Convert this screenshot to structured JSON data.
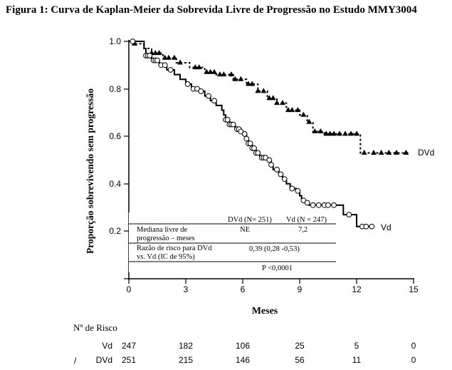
{
  "title": "Figura 1: Curva de Kaplan-Meier da Sobrevida Livre de Progressão no Estudo MMY3004",
  "chart_data": {
    "type": "line",
    "xlabel": "Meses",
    "ylabel": "Proporção sobrevivendo sem progressão",
    "xlim": [
      0,
      15
    ],
    "ylim": [
      0,
      1.0
    ],
    "x_ticks": [
      "0",
      "3",
      "6",
      "9",
      "12",
      "15"
    ],
    "y_ticks": [
      "0.2",
      "0.4",
      "0.6",
      "0.8",
      "1.0"
    ],
    "grid": false,
    "series": [
      {
        "name": "DVd",
        "style": "dashed",
        "marker": "triangle",
        "points": [
          [
            0,
            1.0
          ],
          [
            0.3,
            0.99
          ],
          [
            0.8,
            0.97
          ],
          [
            1.2,
            0.95
          ],
          [
            1.8,
            0.93
          ],
          [
            2.5,
            0.91
          ],
          [
            3.2,
            0.89
          ],
          [
            4.0,
            0.87
          ],
          [
            4.6,
            0.86
          ],
          [
            5.5,
            0.84
          ],
          [
            6.2,
            0.82
          ],
          [
            6.8,
            0.79
          ],
          [
            7.3,
            0.76
          ],
          [
            7.8,
            0.74
          ],
          [
            8.3,
            0.71
          ],
          [
            9.0,
            0.69
          ],
          [
            9.4,
            0.66
          ],
          [
            9.7,
            0.62
          ],
          [
            10.3,
            0.61
          ],
          [
            11.0,
            0.61
          ],
          [
            11.5,
            0.61
          ],
          [
            12.1,
            0.61
          ],
          [
            12.2,
            0.53
          ],
          [
            13.0,
            0.53
          ],
          [
            14.8,
            0.53
          ]
        ],
        "censor_x": [
          0.3,
          1.2,
          1.4,
          1.6,
          1.9,
          2.1,
          2.4,
          2.7,
          3.5,
          3.7,
          4.1,
          4.3,
          4.5,
          4.8,
          5.0,
          5.4,
          5.6,
          5.9,
          6.3,
          6.5,
          6.8,
          7.1,
          7.4,
          7.6,
          7.8,
          8.1,
          8.4,
          8.6,
          8.9,
          9.2,
          9.5,
          9.8,
          10.1,
          10.4,
          10.6,
          10.8,
          11.1,
          11.4,
          11.7,
          12.0,
          12.4,
          12.9,
          13.3,
          13.7,
          14.1,
          14.6
        ]
      },
      {
        "name": "Vd",
        "style": "solid",
        "marker": "circle",
        "points": [
          [
            0,
            1.0
          ],
          [
            0.8,
            0.97
          ],
          [
            0.9,
            0.94
          ],
          [
            1.2,
            0.92
          ],
          [
            1.6,
            0.9
          ],
          [
            2.0,
            0.88
          ],
          [
            2.4,
            0.86
          ],
          [
            2.7,
            0.84
          ],
          [
            3.0,
            0.82
          ],
          [
            3.3,
            0.8
          ],
          [
            3.7,
            0.79
          ],
          [
            4.0,
            0.77
          ],
          [
            4.3,
            0.75
          ],
          [
            4.6,
            0.73
          ],
          [
            4.9,
            0.71
          ],
          [
            5.0,
            0.69
          ],
          [
            5.1,
            0.67
          ],
          [
            5.3,
            0.65
          ],
          [
            5.6,
            0.63
          ],
          [
            5.9,
            0.62
          ],
          [
            6.0,
            0.61
          ],
          [
            6.2,
            0.59
          ],
          [
            6.3,
            0.57
          ],
          [
            6.5,
            0.55
          ],
          [
            6.7,
            0.53
          ],
          [
            6.9,
            0.51
          ],
          [
            7.3,
            0.5
          ],
          [
            7.5,
            0.48
          ],
          [
            7.6,
            0.46
          ],
          [
            7.9,
            0.44
          ],
          [
            8.1,
            0.42
          ],
          [
            8.3,
            0.4
          ],
          [
            8.5,
            0.38
          ],
          [
            8.8,
            0.37
          ],
          [
            9.0,
            0.35
          ],
          [
            9.1,
            0.33
          ],
          [
            9.3,
            0.32
          ],
          [
            9.5,
            0.31
          ],
          [
            11.2,
            0.31
          ],
          [
            11.3,
            0.27
          ],
          [
            11.9,
            0.27
          ],
          [
            12.0,
            0.22
          ],
          [
            12.8,
            0.22
          ]
        ],
        "censor_x": [
          0.2,
          0.9,
          1.0,
          1.1,
          1.3,
          1.4,
          1.5,
          1.7,
          1.9,
          2.2,
          3.1,
          3.4,
          3.6,
          3.8,
          4.2,
          4.5,
          5.1,
          5.2,
          5.3,
          5.4,
          5.5,
          5.7,
          5.8,
          5.9,
          6.1,
          6.2,
          6.3,
          6.4,
          6.5,
          6.6,
          6.7,
          6.8,
          7.0,
          7.1,
          7.2,
          7.4,
          7.5,
          7.8,
          8.0,
          8.2,
          8.6,
          8.9,
          9.2,
          9.4,
          9.7,
          10.0,
          10.3,
          10.5,
          10.8,
          11.6,
          12.3,
          12.5,
          12.8
        ]
      }
    ],
    "series_labels": [
      "DVd",
      "Vd"
    ],
    "table": {
      "col_headers": [
        "DVd (N= 251)",
        "Vd (N = 247)"
      ],
      "rows": [
        {
          "label_line1": "Mediana livre de",
          "label_line2": "progressão – meses",
          "dvd": "NE",
          "vd": "7,2"
        },
        {
          "label_line1": "Razão de risco para DVd",
          "label_line2": "vs. Vd (IC de 95%)",
          "value": "0,39 (0,28 -0,53)"
        },
        {
          "value": "P <0,0001"
        }
      ]
    },
    "risk_table": {
      "header": "Nº de Risco",
      "rows": [
        {
          "label": "Vd",
          "values": [
            "247",
            "182",
            "106",
            "25",
            "5",
            "0"
          ]
        },
        {
          "label": "DVd",
          "values": [
            "251",
            "215",
            "146",
            "56",
            "11",
            "0"
          ]
        }
      ],
      "mark": "/"
    }
  }
}
